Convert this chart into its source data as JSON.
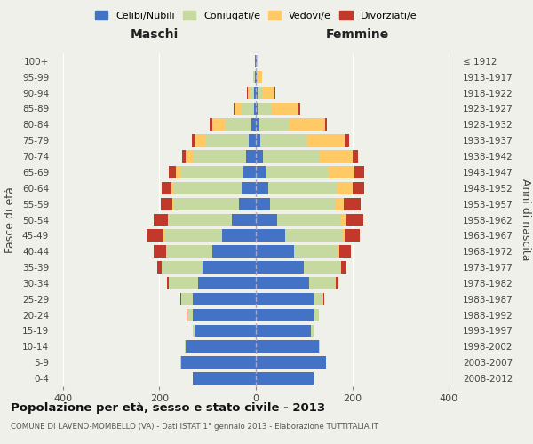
{
  "age_groups": [
    "0-4",
    "5-9",
    "10-14",
    "15-19",
    "20-24",
    "25-29",
    "30-34",
    "35-39",
    "40-44",
    "45-49",
    "50-54",
    "55-59",
    "60-64",
    "65-69",
    "70-74",
    "75-79",
    "80-84",
    "85-89",
    "90-94",
    "95-99",
    "100+"
  ],
  "birth_years": [
    "2008-2012",
    "2003-2007",
    "1998-2002",
    "1993-1997",
    "1988-1992",
    "1983-1987",
    "1978-1982",
    "1973-1977",
    "1968-1972",
    "1963-1967",
    "1958-1962",
    "1953-1957",
    "1948-1952",
    "1943-1947",
    "1938-1942",
    "1933-1937",
    "1928-1932",
    "1923-1927",
    "1918-1922",
    "1913-1917",
    "≤ 1912"
  ],
  "maschi": {
    "celibi": [
      130,
      155,
      145,
      125,
      130,
      130,
      120,
      110,
      90,
      70,
      50,
      35,
      30,
      25,
      20,
      15,
      10,
      4,
      3,
      1,
      1
    ],
    "coniugati": [
      0,
      1,
      2,
      5,
      12,
      25,
      60,
      85,
      95,
      120,
      130,
      135,
      140,
      130,
      110,
      90,
      55,
      25,
      8,
      2,
      0
    ],
    "vedovi": [
      0,
      0,
      0,
      0,
      0,
      0,
      0,
      0,
      1,
      1,
      2,
      3,
      5,
      10,
      15,
      20,
      25,
      15,
      5,
      2,
      0
    ],
    "divorziati": [
      0,
      0,
      0,
      0,
      1,
      2,
      5,
      10,
      25,
      35,
      30,
      25,
      20,
      15,
      8,
      8,
      5,
      2,
      2,
      0,
      0
    ]
  },
  "femmine": {
    "nubili": [
      120,
      145,
      130,
      115,
      120,
      120,
      110,
      100,
      80,
      60,
      45,
      30,
      25,
      20,
      15,
      10,
      8,
      4,
      3,
      1,
      1
    ],
    "coniugate": [
      0,
      1,
      2,
      4,
      10,
      20,
      55,
      75,
      90,
      120,
      130,
      135,
      145,
      130,
      115,
      95,
      60,
      30,
      10,
      2,
      0
    ],
    "vedove": [
      0,
      0,
      0,
      0,
      0,
      0,
      1,
      2,
      3,
      5,
      12,
      18,
      30,
      55,
      70,
      80,
      75,
      55,
      25,
      10,
      2
    ],
    "divorziate": [
      0,
      0,
      0,
      0,
      1,
      2,
      5,
      10,
      25,
      30,
      35,
      35,
      25,
      20,
      12,
      8,
      5,
      3,
      2,
      0,
      0
    ]
  },
  "colors": {
    "celibi_nubili": "#4472c4",
    "coniugati": "#c5d9a0",
    "vedovi": "#ffc966",
    "divorziati": "#c0392b"
  },
  "xlim": 420,
  "title": "Popolazione per età, sesso e stato civile - 2013",
  "subtitle": "COMUNE DI LAVENO-MOMBELLO (VA) - Dati ISTAT 1° gennaio 2013 - Elaborazione TUTTITALIA.IT",
  "ylabel": "Fasce di età",
  "ylabel_right": "Anni di nascita",
  "xlabel_left": "Maschi",
  "xlabel_right": "Femmine",
  "legend_labels": [
    "Celibi/Nubili",
    "Coniugati/e",
    "Vedovi/e",
    "Divorziati/e"
  ],
  "background_color": "#f0f0ea",
  "grid_color": "#ffffff"
}
